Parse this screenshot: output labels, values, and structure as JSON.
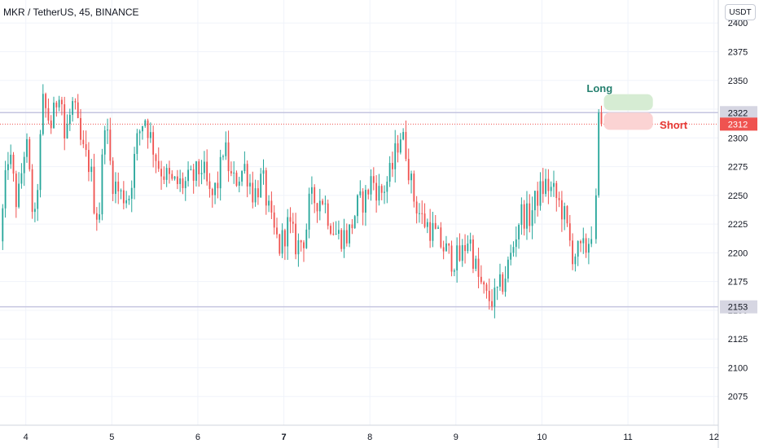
{
  "header": {
    "title": "MKR / TetherUS, 45, BINANCE",
    "currency_button": "USDT"
  },
  "colors": {
    "up": "#26a69a",
    "down": "#ef5350",
    "grid": "#f0f3fa",
    "level_line": "#c5c5e0",
    "last_price_line": "#ef5350",
    "long_box": "#d6ecd3",
    "short_box": "#fbd3d3",
    "long_text": "#26806f",
    "short_text": "#e53935"
  },
  "chart_data": {
    "type": "candlestick",
    "title": "MKR / TetherUS, 45, BINANCE",
    "ylim": [
      2050,
      2420
    ],
    "y_ticks": [
      2075,
      2100,
      2125,
      2150,
      2175,
      2200,
      2225,
      2250,
      2275,
      2300,
      2325,
      2350,
      2375,
      2400
    ],
    "xlim": [
      3.7,
      12.05
    ],
    "x_ticks": [
      {
        "value": 4,
        "label": "4",
        "bold": false
      },
      {
        "value": 5,
        "label": "5",
        "bold": false
      },
      {
        "value": 6,
        "label": "6",
        "bold": false
      },
      {
        "value": 7,
        "label": "7",
        "bold": true
      },
      {
        "value": 8,
        "label": "8",
        "bold": false
      },
      {
        "value": 9,
        "label": "9",
        "bold": false
      },
      {
        "value": 10,
        "label": "10",
        "bold": false
      },
      {
        "value": 11,
        "label": "11",
        "bold": false
      },
      {
        "value": 12,
        "label": "12",
        "bold": false
      }
    ],
    "candle_interval_days": 0.03125,
    "price_path": [
      [
        3.7,
        2210
      ],
      [
        3.8,
        2290
      ],
      [
        3.9,
        2240
      ],
      [
        4.0,
        2300
      ],
      [
        4.1,
        2220
      ],
      [
        4.2,
        2330
      ],
      [
        4.3,
        2310
      ],
      [
        4.4,
        2350
      ],
      [
        4.45,
        2300
      ],
      [
        4.55,
        2330
      ],
      [
        4.65,
        2290
      ],
      [
        4.75,
        2275
      ],
      [
        4.8,
        2240
      ],
      [
        4.85,
        2230
      ],
      [
        4.92,
        2320
      ],
      [
        5.0,
        2265
      ],
      [
        5.1,
        2250
      ],
      [
        5.2,
        2250
      ],
      [
        5.3,
        2300
      ],
      [
        5.38,
        2320
      ],
      [
        5.45,
        2300
      ],
      [
        5.55,
        2275
      ],
      [
        5.7,
        2260
      ],
      [
        5.85,
        2260
      ],
      [
        5.95,
        2265
      ],
      [
        6.05,
        2275
      ],
      [
        6.15,
        2245
      ],
      [
        6.25,
        2265
      ],
      [
        6.3,
        2295
      ],
      [
        6.4,
        2260
      ],
      [
        6.55,
        2275
      ],
      [
        6.65,
        2250
      ],
      [
        6.75,
        2265
      ],
      [
        6.85,
        2225
      ],
      [
        6.95,
        2205
      ],
      [
        7.05,
        2225
      ],
      [
        7.15,
        2205
      ],
      [
        7.25,
        2215
      ],
      [
        7.3,
        2245
      ],
      [
        7.45,
        2248
      ],
      [
        7.55,
        2225
      ],
      [
        7.62,
        2215
      ],
      [
        7.75,
        2215
      ],
      [
        7.85,
        2240
      ],
      [
        7.95,
        2248
      ],
      [
        8.02,
        2265
      ],
      [
        8.12,
        2250
      ],
      [
        8.25,
        2270
      ],
      [
        8.35,
        2305
      ],
      [
        8.42,
        2290
      ],
      [
        8.5,
        2250
      ],
      [
        8.6,
        2230
      ],
      [
        8.72,
        2220
      ],
      [
        8.85,
        2205
      ],
      [
        8.95,
        2195
      ],
      [
        9.05,
        2195
      ],
      [
        9.15,
        2215
      ],
      [
        9.25,
        2180
      ],
      [
        9.35,
        2160
      ],
      [
        9.45,
        2160
      ],
      [
        9.55,
        2175
      ],
      [
        9.65,
        2200
      ],
      [
        9.75,
        2235
      ],
      [
        9.85,
        2230
      ],
      [
        9.95,
        2250
      ],
      [
        10.05,
        2260
      ],
      [
        10.15,
        2250
      ],
      [
        10.25,
        2235
      ],
      [
        10.35,
        2200
      ],
      [
        10.45,
        2200
      ],
      [
        10.52,
        2205
      ],
      [
        10.57,
        2218
      ],
      [
        10.62,
        2250
      ],
      [
        10.66,
        2322
      ]
    ],
    "levels": [
      {
        "name": "resistance",
        "price": 2322,
        "label": "2322"
      },
      {
        "name": "support",
        "price": 2153,
        "label": "2153"
      }
    ],
    "last_price": {
      "price": 2312,
      "label": "2312"
    },
    "annotations": [
      {
        "text": "Long",
        "x": 10.52,
        "y": 2340,
        "box_x": [
          10.72,
          11.29
        ],
        "box_y": [
          2324,
          2338
        ]
      },
      {
        "text": "Short",
        "x": 11.37,
        "y": 2308,
        "box_x": [
          10.72,
          11.29
        ],
        "box_y": [
          2307,
          2322
        ]
      }
    ]
  }
}
